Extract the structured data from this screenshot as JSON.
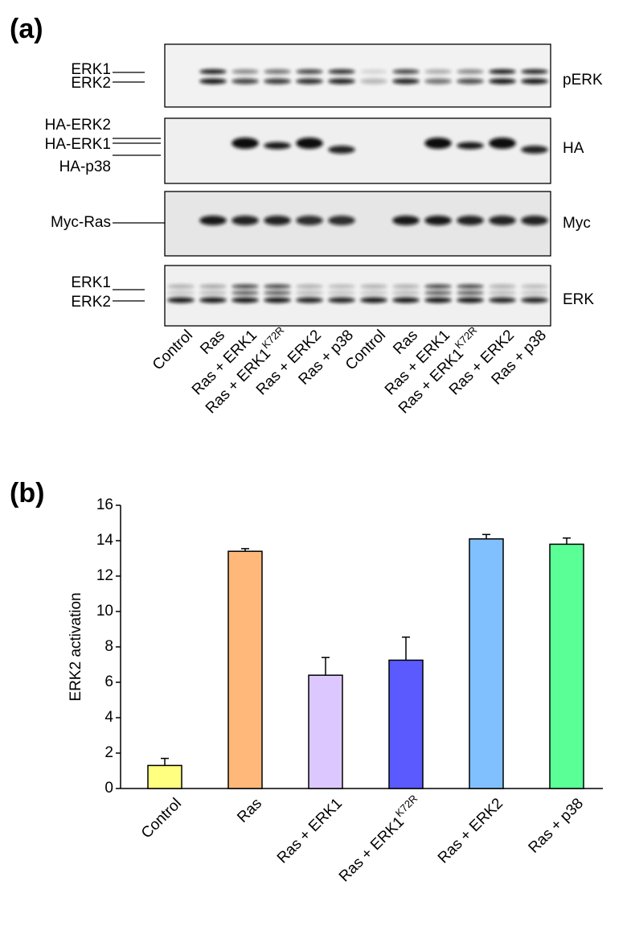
{
  "panel_a": {
    "label": "(a)",
    "blots": [
      {
        "name": "pERK",
        "markers": [
          "ERK1",
          "ERK2"
        ]
      },
      {
        "name": "HA",
        "markers": [
          "HA-ERK2",
          "HA-ERK1",
          "HA-p38"
        ]
      },
      {
        "name": "Myc",
        "markers": [
          "Myc-Ras"
        ]
      },
      {
        "name": "ERK",
        "markers": [
          "ERK1",
          "ERK2"
        ]
      }
    ],
    "lanes": [
      {
        "label": "Control"
      },
      {
        "label": "Ras"
      },
      {
        "label": "Ras + ERK1"
      },
      {
        "label": "Ras + ERK1",
        "sup": "K72R"
      },
      {
        "label": "Ras + ERK2"
      },
      {
        "label": "Ras + p38"
      },
      {
        "label": "Control"
      },
      {
        "label": "Ras"
      },
      {
        "label": "Ras + ERK1"
      },
      {
        "label": "Ras + ERK1",
        "sup": "K72R"
      },
      {
        "label": "Ras + ERK2"
      },
      {
        "label": "Ras + p38"
      }
    ]
  },
  "chart_data": {
    "type": "bar",
    "panel_label": "(b)",
    "y_label": "ERK2 activation",
    "categories": [
      "Control",
      "Ras",
      "Ras + ERK1",
      "Ras + ERK1",
      "Ras + ERK2",
      "Ras + p38"
    ],
    "category_superscripts": [
      null,
      null,
      null,
      "K72R",
      null,
      null
    ],
    "values": [
      1.3,
      13.4,
      6.4,
      7.25,
      14.1,
      13.8
    ],
    "errors": [
      0.4,
      0.15,
      1.0,
      1.3,
      0.25,
      0.35
    ],
    "colors": [
      "#ffff80",
      "#ffb87a",
      "#dcc8ff",
      "#5a5aff",
      "#80c0ff",
      "#5aff96"
    ],
    "ylim": [
      0,
      16
    ],
    "yticks": [
      0,
      2,
      4,
      6,
      8,
      10,
      12,
      14,
      16
    ]
  }
}
